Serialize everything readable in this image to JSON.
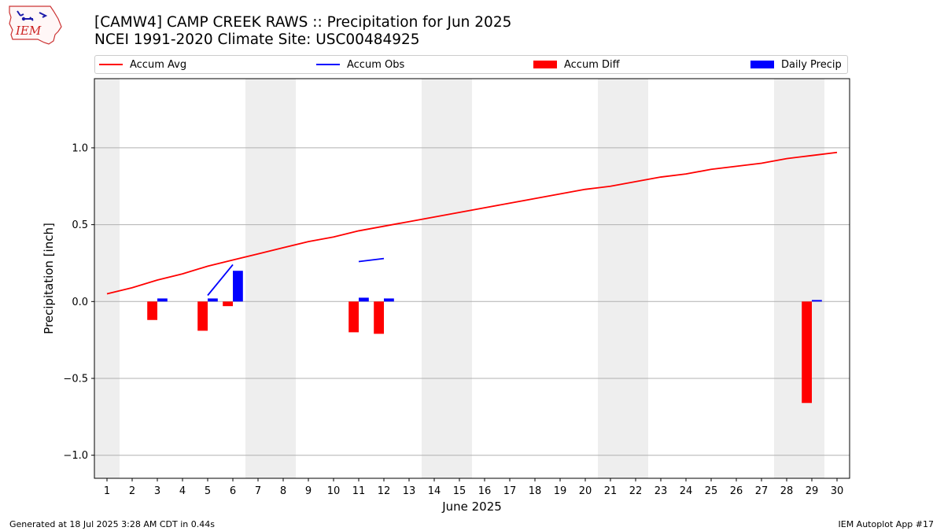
{
  "title_line1": "[CAMW4] CAMP CREEK RAWS :: Precipitation for Jun 2025",
  "title_line2": "NCEI 1991-2020 Climate Site: USC00484925",
  "footer_left": "Generated at 18 Jul 2025 3:28 AM CDT in 0.44s",
  "footer_right": "IEM Autoplot App #17",
  "logo_text": "IEM",
  "legend": [
    {
      "label": "Accum Avg",
      "kind": "line",
      "color": "#ff0000"
    },
    {
      "label": "Accum Obs",
      "kind": "line",
      "color": "#0000ff"
    },
    {
      "label": "Accum Diff",
      "kind": "box",
      "color": "#ff0000"
    },
    {
      "label": "Daily Precip",
      "kind": "box",
      "color": "#0000ff"
    }
  ],
  "chart_data": {
    "type": "bar",
    "xlabel": "June 2025",
    "ylabel": "Precipitation [inch]",
    "xlim": [
      0.5,
      30.5
    ],
    "ylim": [
      -1.15,
      1.45
    ],
    "yticks": [
      -1.0,
      -0.5,
      0.0,
      0.5,
      1.0
    ],
    "ytick_labels": [
      "−1.0",
      "−0.5",
      "0.0",
      "0.5",
      "1.0"
    ],
    "days": [
      1,
      2,
      3,
      4,
      5,
      6,
      7,
      8,
      9,
      10,
      11,
      12,
      13,
      14,
      15,
      16,
      17,
      18,
      19,
      20,
      21,
      22,
      23,
      24,
      25,
      26,
      27,
      28,
      29,
      30
    ],
    "weekend_days": [
      1,
      7,
      8,
      14,
      15,
      21,
      22,
      28,
      29
    ],
    "accum_avg": [
      0.05,
      0.09,
      0.14,
      0.18,
      0.23,
      0.27,
      0.31,
      0.35,
      0.39,
      0.42,
      0.46,
      0.49,
      0.52,
      0.55,
      0.58,
      0.61,
      0.64,
      0.67,
      0.7,
      0.73,
      0.75,
      0.78,
      0.81,
      0.83,
      0.86,
      0.88,
      0.9,
      0.93,
      0.95,
      0.97
    ],
    "accum_obs_segments": [
      {
        "days": [
          5,
          6
        ],
        "values": [
          0.04,
          0.24
        ]
      },
      {
        "days": [
          11,
          12
        ],
        "values": [
          0.26,
          0.28
        ]
      }
    ],
    "accum_diff": [
      {
        "day": 3,
        "value": -0.12
      },
      {
        "day": 5,
        "value": -0.19
      },
      {
        "day": 6,
        "value": -0.03
      },
      {
        "day": 11,
        "value": -0.2
      },
      {
        "day": 12,
        "value": -0.21
      },
      {
        "day": 29,
        "value": -0.66
      }
    ],
    "daily_precip": [
      {
        "day": 3,
        "value": 0.02
      },
      {
        "day": 5,
        "value": 0.02
      },
      {
        "day": 6,
        "value": 0.2
      },
      {
        "day": 11,
        "value": 0.025
      },
      {
        "day": 12,
        "value": 0.02
      },
      {
        "day": 29,
        "value": 0.01
      }
    ],
    "colors": {
      "avg": "#ff0000",
      "obs": "#0000ff",
      "diff": "#ff0000",
      "precip": "#0000ff",
      "weekend": "#eeeeee",
      "grid": "#b0b0b0"
    }
  }
}
